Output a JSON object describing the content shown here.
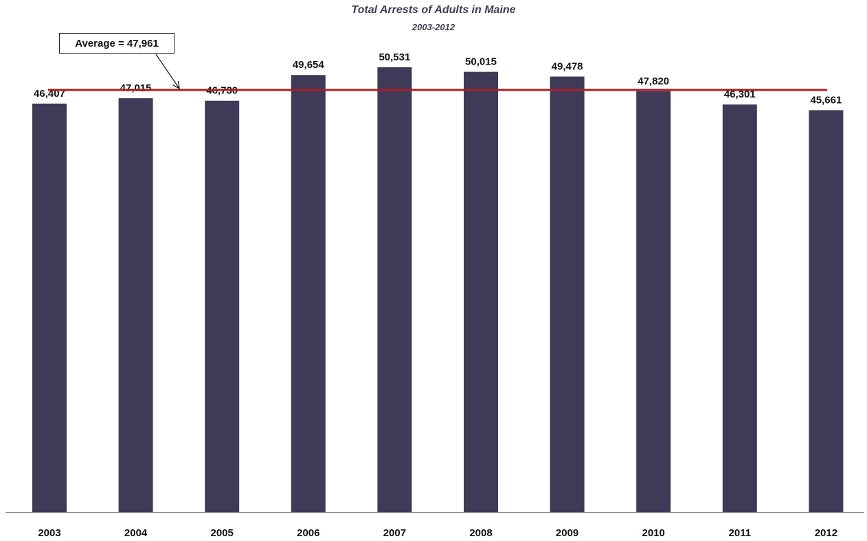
{
  "chart_data": {
    "type": "bar",
    "title": "Total Arrests of Adults in Maine",
    "subtitle": "2003-2012",
    "categories": [
      "2003",
      "2004",
      "2005",
      "2006",
      "2007",
      "2008",
      "2009",
      "2010",
      "2011",
      "2012"
    ],
    "values": [
      46407,
      47015,
      46730,
      49654,
      50531,
      50015,
      49478,
      47820,
      46301,
      45661
    ],
    "value_labels": [
      "46,407",
      "47,015",
      "46,730",
      "49,654",
      "50,531",
      "50,015",
      "49,478",
      "47,820",
      "46,301",
      "45,661"
    ],
    "average": 47961,
    "average_label": "Average = 47,961",
    "ylim": [
      0,
      51500
    ],
    "grid": false,
    "legend": "none",
    "colors": {
      "bar": "#3f3a57",
      "average_line": "#b01c24",
      "text": "#111111"
    }
  }
}
